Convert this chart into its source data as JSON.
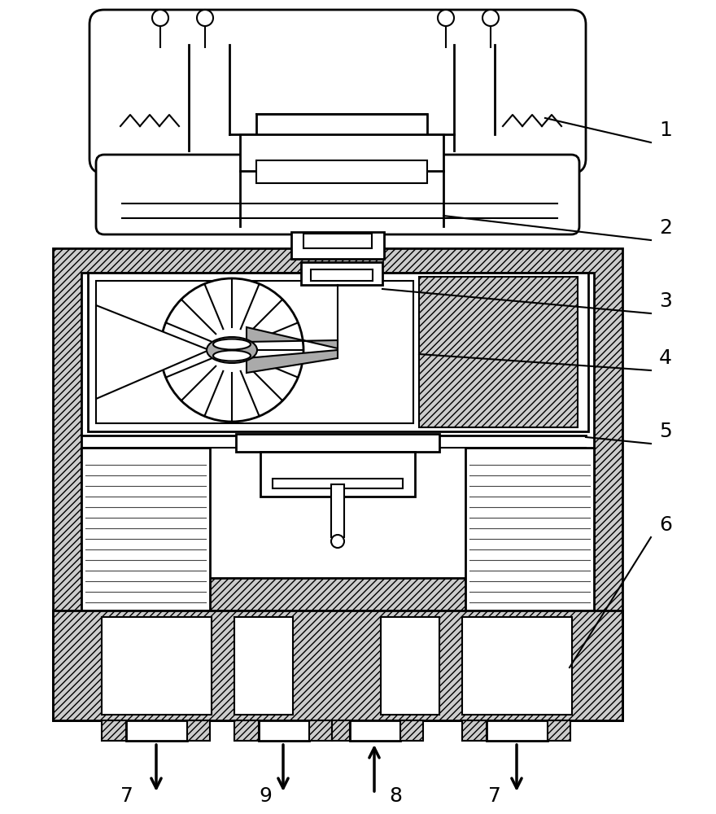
{
  "bg_color": "#ffffff",
  "line_color": "#000000",
  "figsize": [
    8.8,
    10.0
  ],
  "dpi": 100
}
